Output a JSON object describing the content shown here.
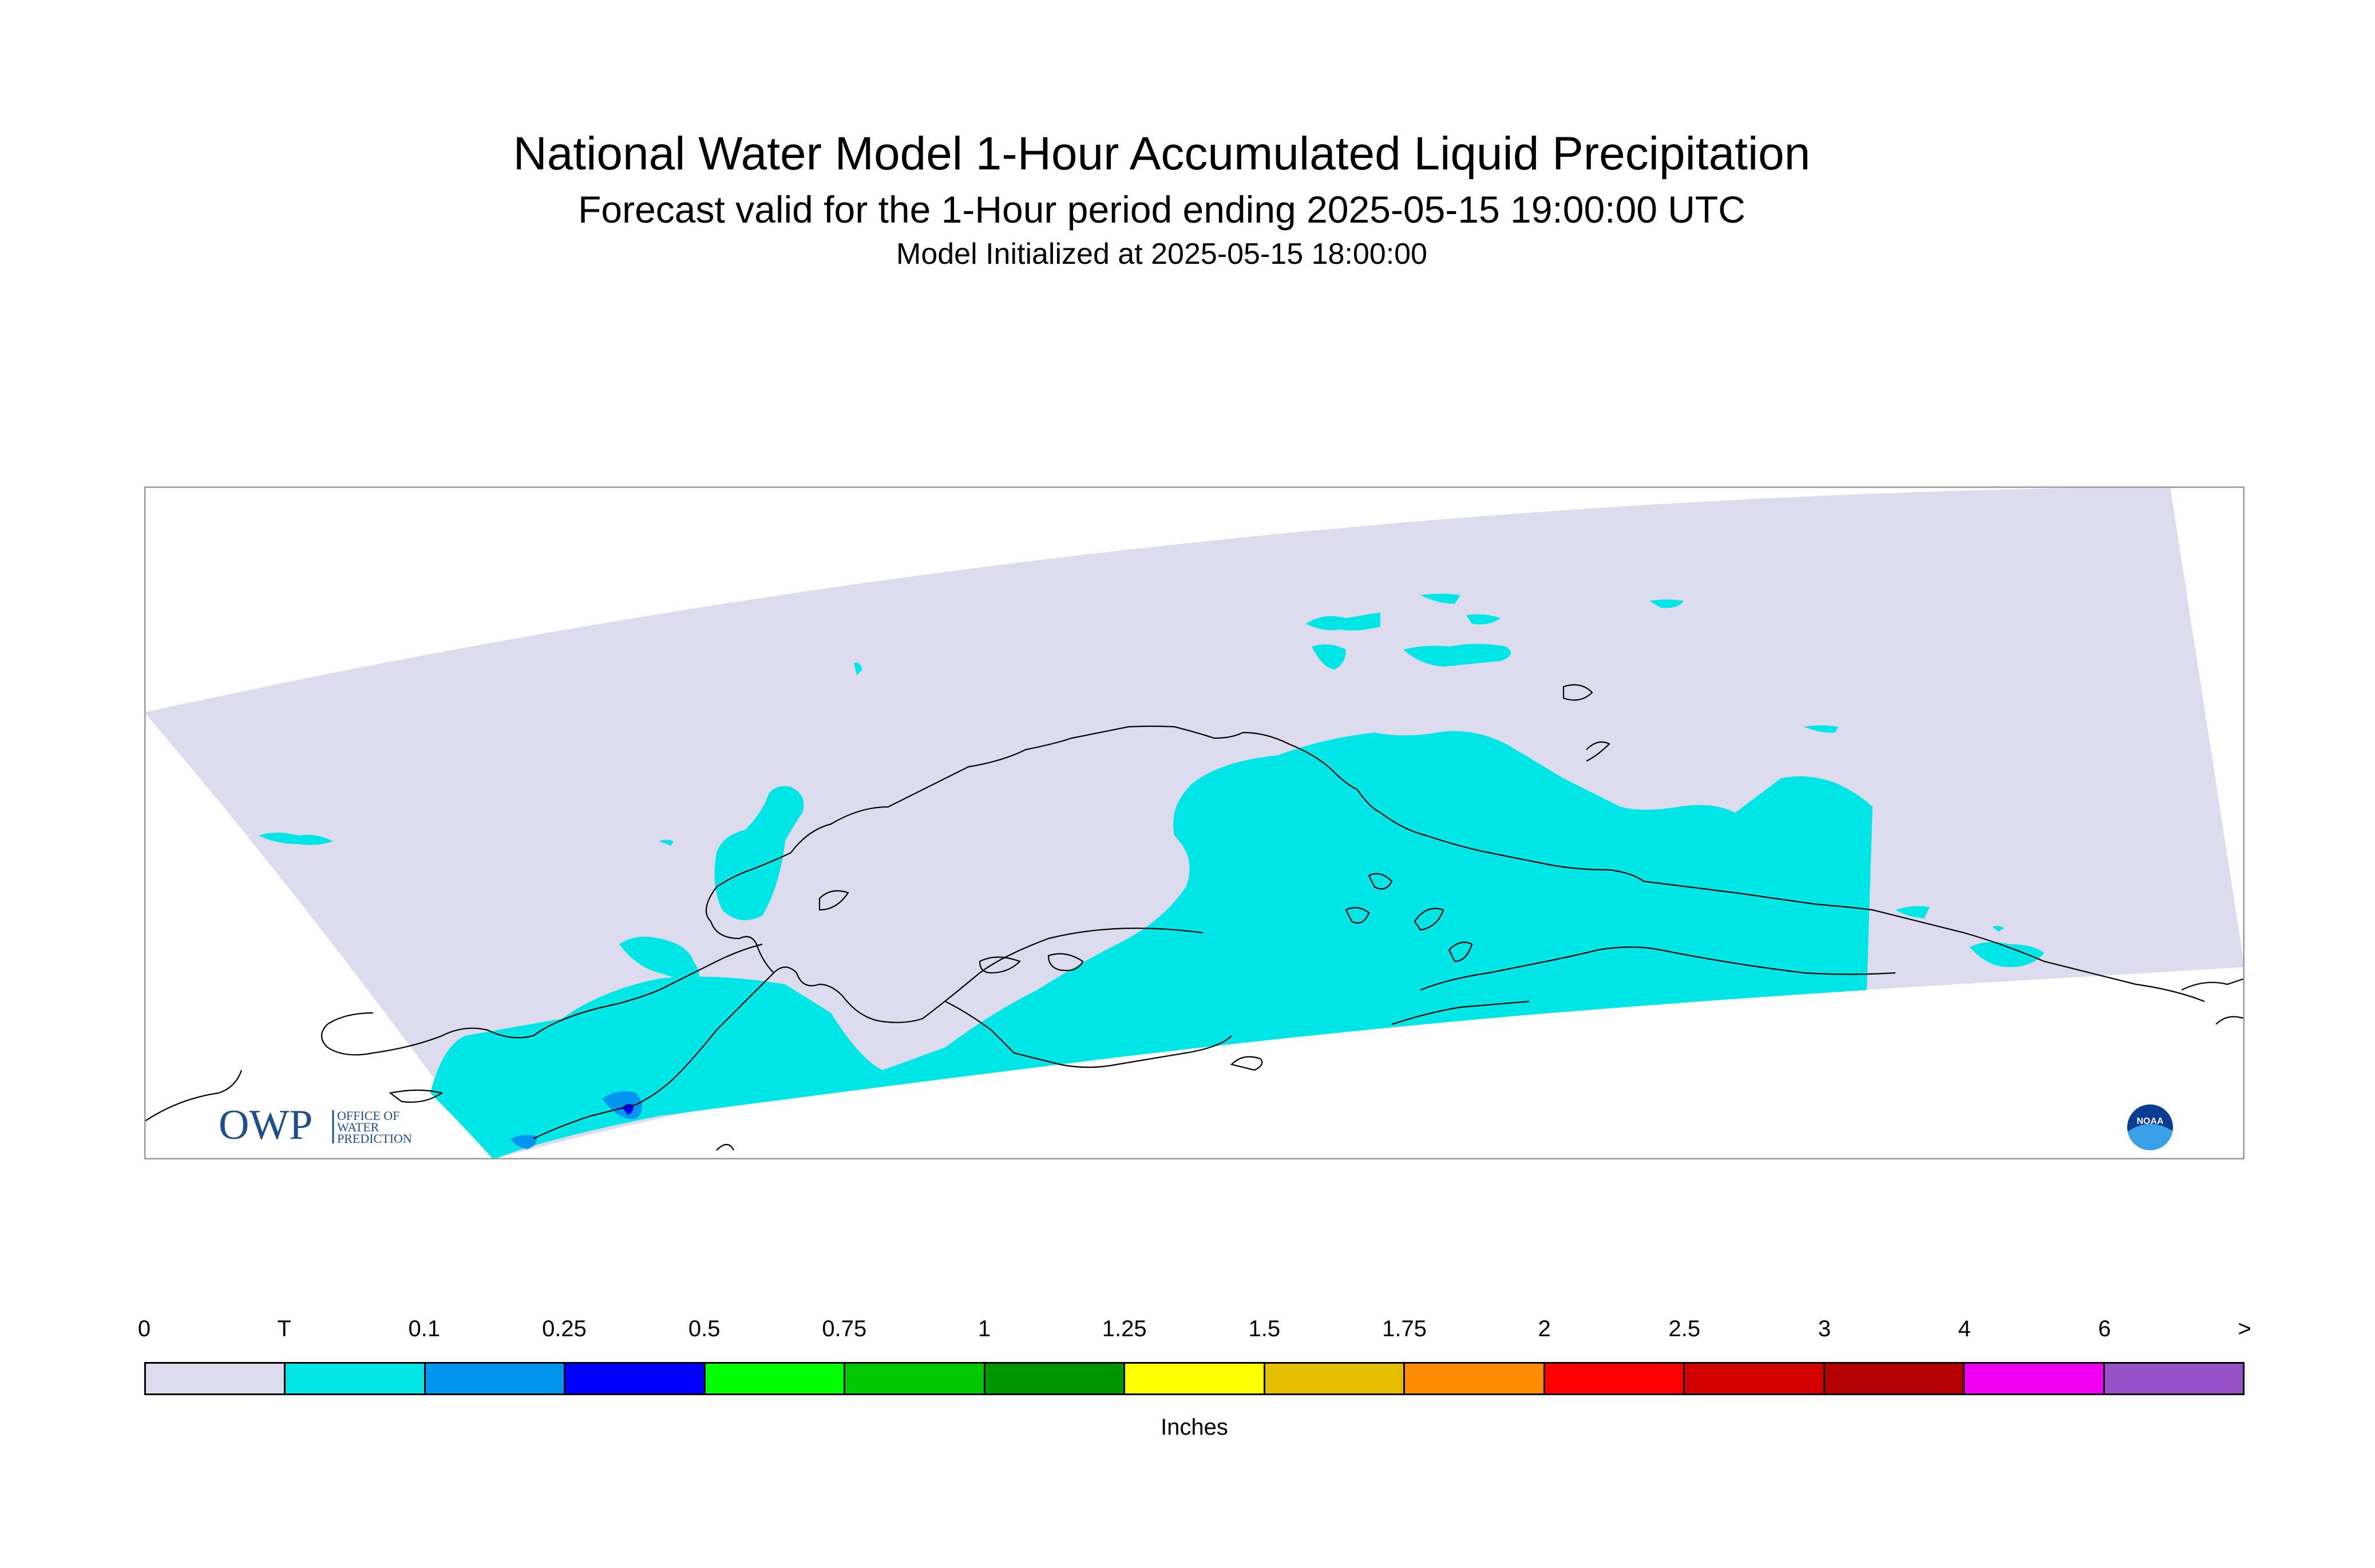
{
  "header": {
    "title": "National Water Model 1-Hour Accumulated Liquid Precipitation",
    "subtitle": "Forecast valid for the 1-Hour period ending 2025-05-15 19:00:00 UTC",
    "init": "Model Initialized at 2025-05-15 18:00:00"
  },
  "map": {
    "domain_color": "#dcdcee",
    "precip_color": "#00e5e5",
    "precip_color_01": "#0096f0",
    "precip_color_025": "#0000ff",
    "coast_color": "#000000",
    "owp_logo": {
      "letters": "OWP",
      "line1": "OFFICE OF",
      "line2": "WATER",
      "line3": "PREDICTION"
    },
    "noaa_logo": {
      "text": "NOAA"
    }
  },
  "legend": {
    "ticks": [
      "0",
      "T",
      "0.1",
      "0.25",
      "0.5",
      "0.75",
      "1",
      "1.25",
      "1.5",
      "1.75",
      "2",
      "2.5",
      "3",
      "4",
      "6",
      ">"
    ],
    "colors": [
      "#dcdcee",
      "#00e5e5",
      "#0096f0",
      "#0000ff",
      "#00ff00",
      "#00c800",
      "#009600",
      "#ffff00",
      "#e6be00",
      "#ff8c00",
      "#ff0000",
      "#d20000",
      "#b40000",
      "#f000f0",
      "#9650c8"
    ],
    "units": "Inches"
  }
}
